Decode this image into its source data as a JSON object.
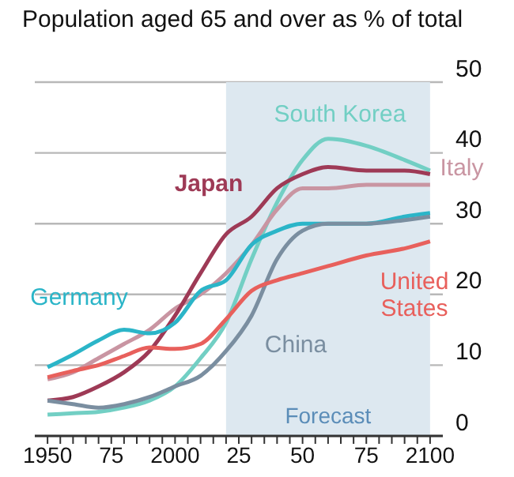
{
  "chart_data": {
    "type": "line",
    "subtitle": "Population aged 65 and over as % of total",
    "x": [
      1950,
      1960,
      1970,
      1980,
      1990,
      2000,
      2010,
      2020,
      2030,
      2040,
      2050,
      2060,
      2075,
      2090,
      2100
    ],
    "series": [
      {
        "name": "South Korea",
        "color": "#72cfc4",
        "values": [
          3,
          3.2,
          3.4,
          4,
          5,
          7,
          11,
          16,
          25,
          33,
          39,
          42,
          41,
          39,
          37.5
        ]
      },
      {
        "name": "Italy",
        "color": "#c995a2",
        "values": [
          8,
          9,
          11,
          13,
          15,
          18,
          20,
          23,
          27,
          32,
          35,
          35,
          35.5,
          35.5,
          35.5
        ]
      },
      {
        "name": "Japan",
        "color": "#9e3a56",
        "values": [
          5,
          5.5,
          7,
          9,
          12,
          17,
          23,
          28.5,
          31,
          35,
          37,
          38,
          37.5,
          37.5,
          37
        ]
      },
      {
        "name": "Germany",
        "color": "#2bb5c8",
        "values": [
          9.7,
          11.5,
          13.5,
          15,
          14.5,
          16,
          20.5,
          22,
          27,
          29,
          30,
          30,
          30,
          31,
          31.5
        ]
      },
      {
        "name": "China",
        "color": "#7a8ea0",
        "values": [
          5,
          4.5,
          4,
          4.5,
          5.5,
          7,
          8.5,
          12,
          17,
          25,
          29,
          30,
          30,
          30.5,
          31
        ]
      },
      {
        "name": "United States",
        "color": "#e8605c",
        "values": [
          8.3,
          9.2,
          10,
          11.3,
          12.5,
          12.3,
          13,
          16.5,
          20.5,
          22,
          23,
          24,
          25.5,
          26.5,
          27.5
        ]
      }
    ],
    "xlim": [
      1945,
      2105
    ],
    "xticks": [
      {
        "value": 1950,
        "label": "1950"
      },
      {
        "value": 1955,
        "label": null
      },
      {
        "value": 1960,
        "label": null
      },
      {
        "value": 1965,
        "label": null
      },
      {
        "value": 1970,
        "label": null
      },
      {
        "value": 1975,
        "label": "75"
      },
      {
        "value": 1980,
        "label": null
      },
      {
        "value": 1985,
        "label": null
      },
      {
        "value": 1990,
        "label": null
      },
      {
        "value": 1995,
        "label": null
      },
      {
        "value": 2000,
        "label": "2000"
      },
      {
        "value": 2005,
        "label": null
      },
      {
        "value": 2010,
        "label": null
      },
      {
        "value": 2015,
        "label": null
      },
      {
        "value": 2020,
        "label": null
      },
      {
        "value": 2025,
        "label": "25"
      },
      {
        "value": 2030,
        "label": null
      },
      {
        "value": 2035,
        "label": null
      },
      {
        "value": 2040,
        "label": null
      },
      {
        "value": 2045,
        "label": null
      },
      {
        "value": 2050,
        "label": "50"
      },
      {
        "value": 2055,
        "label": null
      },
      {
        "value": 2060,
        "label": null
      },
      {
        "value": 2065,
        "label": null
      },
      {
        "value": 2070,
        "label": null
      },
      {
        "value": 2075,
        "label": "75"
      },
      {
        "value": 2080,
        "label": null
      },
      {
        "value": 2085,
        "label": null
      },
      {
        "value": 2090,
        "label": null
      },
      {
        "value": 2095,
        "label": null
      },
      {
        "value": 2100,
        "label": "2100"
      }
    ],
    "ylim": [
      0,
      50
    ],
    "yticks": [
      0,
      10,
      20,
      30,
      40,
      50
    ],
    "grid": "y",
    "legend": false,
    "bands": [
      {
        "axis": "x",
        "from": 2020,
        "to": 2100,
        "label": "Forecast",
        "color": "#dde8f0"
      }
    ]
  }
}
